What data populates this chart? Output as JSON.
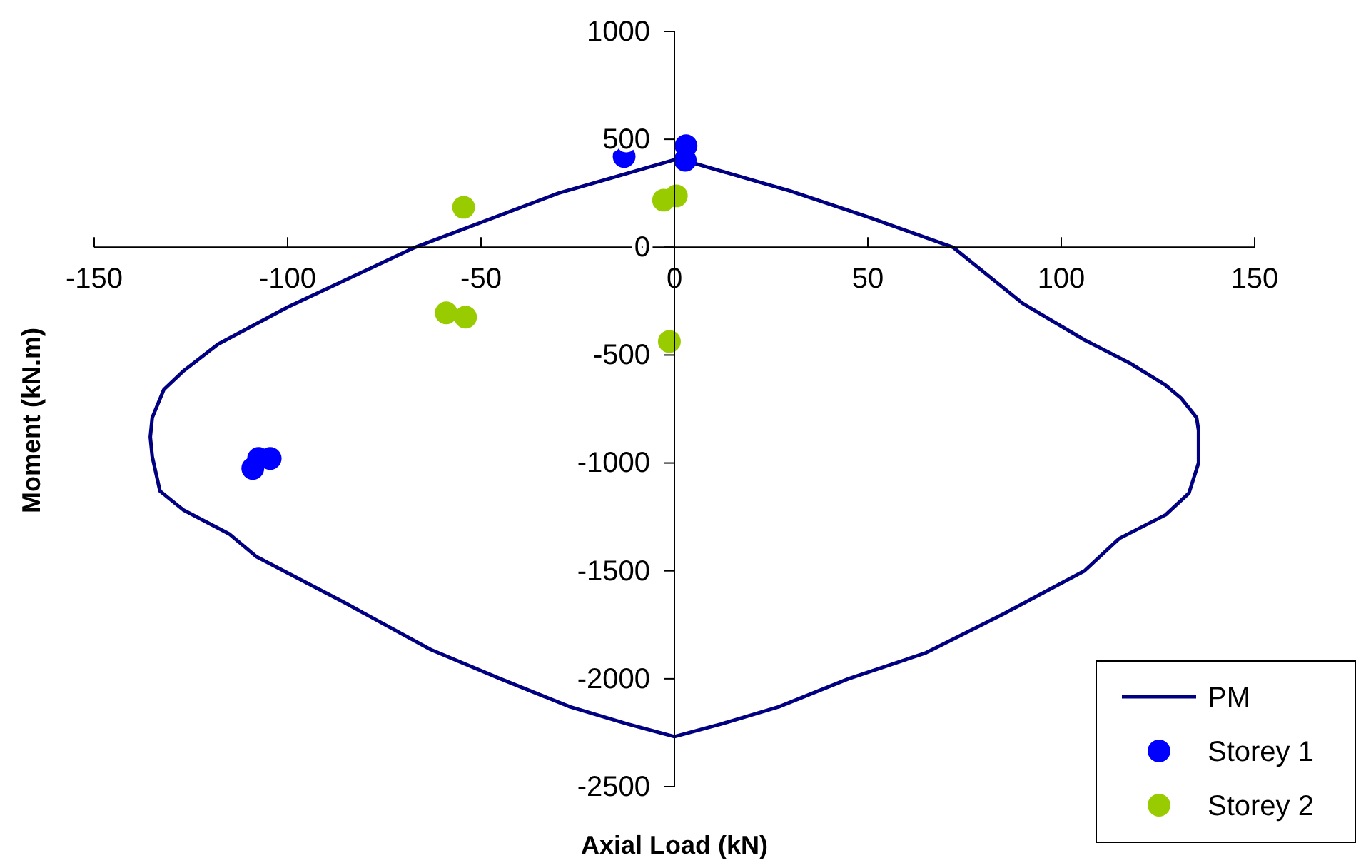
{
  "chart_data": {
    "type": "scatter",
    "xlabel": "Axial Load (kN)",
    "ylabel": "Moment (kN.m)",
    "xlim": [
      -150,
      150
    ],
    "xticks": [
      -150,
      -100,
      -50,
      0,
      50,
      100,
      150
    ],
    "ylim": [
      -2500,
      1000
    ],
    "yticks": [
      -2500,
      -2000,
      -1500,
      -1000,
      -500,
      0,
      500,
      1000
    ],
    "grid": false,
    "legend": "bottom right",
    "series": [
      {
        "name": "PM",
        "type": "line",
        "color": "#000080",
        "marker": "none",
        "line_style": "solid",
        "x": [
          0,
          -30,
          -67,
          -100,
          -118,
          -127,
          -132,
          -135,
          -135.5,
          -135,
          -133,
          -127,
          -115,
          -108,
          -85,
          -63,
          -45,
          -27,
          -12,
          0,
          12,
          27,
          45,
          65,
          85,
          106,
          115,
          127,
          133,
          135.5,
          135.5,
          135,
          131,
          127,
          118,
          106,
          90,
          72,
          50,
          30,
          1
        ],
        "values": [
          405,
          250,
          0,
          -278,
          -450,
          -575,
          -660,
          -790,
          -880,
          -970,
          -1130,
          -1217,
          -1330,
          -1435,
          -1650,
          -1865,
          -2000,
          -2130,
          -2210,
          -2268,
          -2210,
          -2130,
          -2000,
          -1880,
          -1700,
          -1500,
          -1350,
          -1240,
          -1140,
          -1000,
          -850,
          -790,
          -700,
          -640,
          -540,
          -430,
          -260,
          0,
          140,
          260,
          410
        ]
      },
      {
        "name": "Storey 1",
        "color": "#0000ff",
        "marker": "circle",
        "x": [
          -13,
          3,
          2.8,
          -109,
          -107.5,
          -104.5
        ],
        "values": [
          420,
          470,
          403,
          -1025,
          -979,
          -979
        ]
      },
      {
        "name": "Storey 2",
        "color": "#99cc00",
        "marker": "circle",
        "x": [
          -54.5,
          -2.8,
          0.5,
          -59,
          -54,
          -1.3
        ],
        "values": [
          185,
          218,
          238,
          -304,
          -324,
          -437
        ]
      }
    ]
  }
}
